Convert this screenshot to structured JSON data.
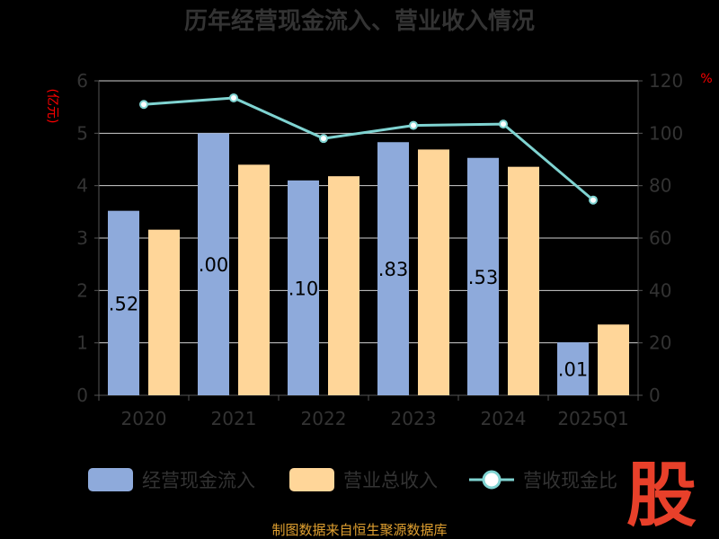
{
  "title": "历年经营现金流入、营业收入情况",
  "footer": "制图数据来自恒生聚源数据库",
  "logo_text": "股",
  "chart_data": {
    "type": "bar",
    "categories": [
      "2020",
      "2021",
      "2022",
      "2023",
      "2024",
      "2025Q1"
    ],
    "y_left": {
      "unit": "(亿元)",
      "range": [
        0,
        6
      ],
      "ticks": [
        "0",
        "1",
        "2",
        "3",
        "4",
        "5",
        "6"
      ]
    },
    "y_right": {
      "unit": "%",
      "range": [
        0,
        120
      ],
      "ticks": [
        "0",
        "20",
        "40",
        "60",
        "80",
        "100",
        "120"
      ]
    },
    "grid": true,
    "legend_position": "bottom",
    "series": [
      {
        "name": "经营现金流入",
        "kind": "bar",
        "axis": "left",
        "color": "#8eaadb",
        "values": [
          3.52,
          5.0,
          4.1,
          4.83,
          4.53,
          1.01
        ],
        "data_labels": [
          ".52",
          ".00",
          ".10",
          ".83",
          ".53",
          ".01"
        ]
      },
      {
        "name": "营业总收入",
        "kind": "bar",
        "axis": "left",
        "color": "#ffd699",
        "values": [
          3.16,
          4.4,
          4.18,
          4.69,
          4.36,
          1.35
        ]
      },
      {
        "name": "营收现金比",
        "kind": "line",
        "axis": "right",
        "color": "#7fd3d1",
        "values": [
          111,
          113.5,
          98,
          103,
          103.5,
          74.5
        ]
      }
    ]
  }
}
